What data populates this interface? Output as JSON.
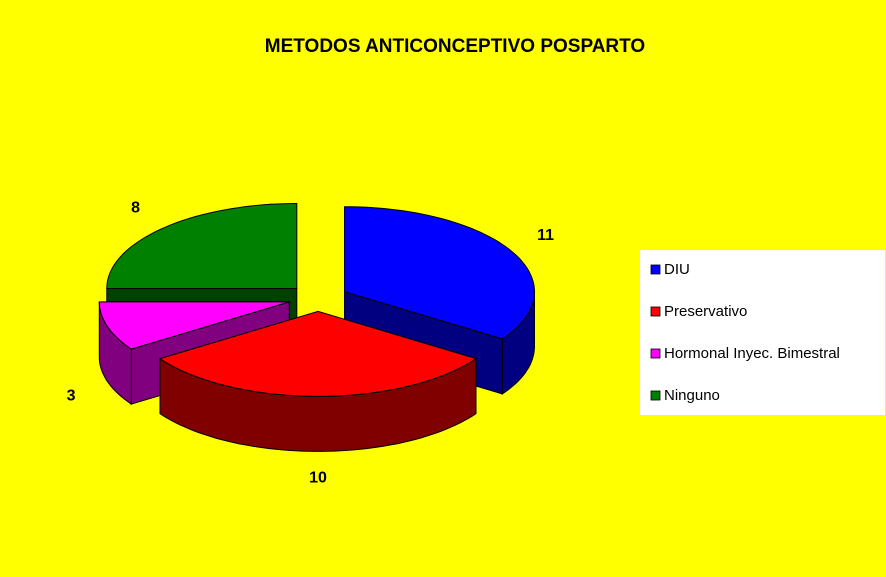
{
  "chart_data": {
    "type": "pie3d",
    "title": "METODOS ANTICONCEPTIVO POSPARTO",
    "categories": [
      "DIU",
      "Preservativo",
      "Hormonal Inyec. Bimestral",
      "Ninguno"
    ],
    "values": [
      11,
      10,
      3,
      8
    ],
    "colors": [
      "#0000FF",
      "#FF0000",
      "#FF00FF",
      "#008000"
    ],
    "side_colors": [
      "#000080",
      "#800000",
      "#800080",
      "#004000"
    ],
    "legend": "right"
  }
}
